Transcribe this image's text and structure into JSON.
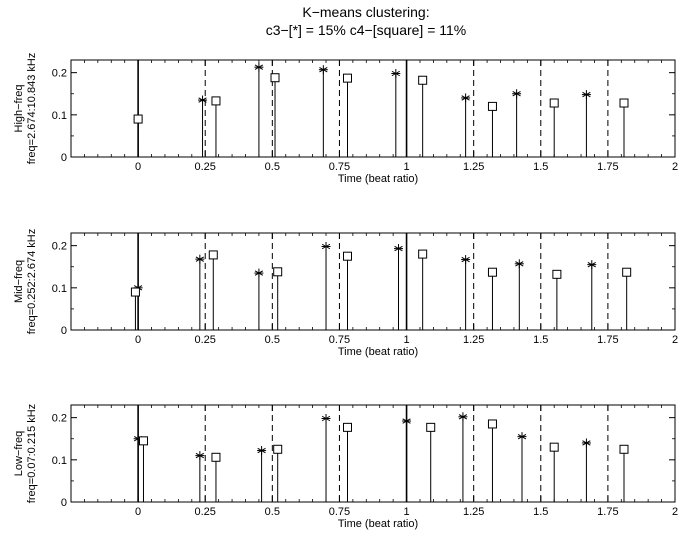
{
  "figure": {
    "title_line1": "K−means clustering:",
    "title_line2": "c3−[*] = 15%  c4−[square] = 11%"
  },
  "chart_data": [
    {
      "type": "stem",
      "ylabel_line1": "High−freq",
      "ylabel_line2": "freq=2.674:10.843 kHz",
      "xlabel": "Time (beat ratio)",
      "xlim": [
        -0.25,
        2
      ],
      "ylim": [
        0,
        0.23
      ],
      "xticks": [
        0,
        0.25,
        0.5,
        0.75,
        1,
        1.25,
        1.5,
        1.75,
        2
      ],
      "xtick_labels": [
        "0",
        "0.25",
        "0.5",
        "0.75",
        "1",
        "1.25",
        "1.5",
        "1.75",
        "2"
      ],
      "yticks": [
        0,
        0.1,
        0.2
      ],
      "ytick_labels": [
        "0",
        "0.1",
        "0.2"
      ],
      "solid_vlines": [
        0,
        1
      ],
      "dashed_vlines": [
        0.25,
        0.5,
        0.75,
        1.25,
        1.5,
        1.75
      ],
      "series": [
        {
          "marker": "star",
          "x": [
            0.0,
            0.24,
            0.45,
            0.69,
            0.96,
            1.22,
            1.41,
            1.67
          ],
          "y": [
            0.09,
            0.135,
            0.213,
            0.207,
            0.198,
            0.14,
            0.15,
            0.148
          ]
        },
        {
          "marker": "square",
          "x": [
            0.0,
            0.29,
            0.51,
            0.78,
            1.06,
            1.32,
            1.55,
            1.81
          ],
          "y": [
            0.09,
            0.133,
            0.188,
            0.187,
            0.182,
            0.12,
            0.128,
            0.128
          ]
        }
      ]
    },
    {
      "type": "stem",
      "ylabel_line1": "Mid−freq",
      "ylabel_line2": "freq=0.252:2.674 kHz",
      "xlabel": "Time (beat ratio)",
      "xlim": [
        -0.25,
        2
      ],
      "ylim": [
        0,
        0.23
      ],
      "xticks": [
        0,
        0.25,
        0.5,
        0.75,
        1,
        1.25,
        1.5,
        1.75,
        2
      ],
      "xtick_labels": [
        "0",
        "0.25",
        "0.5",
        "0.75",
        "1",
        "1.25",
        "1.5",
        "1.75",
        "2"
      ],
      "yticks": [
        0,
        0.1,
        0.2
      ],
      "ytick_labels": [
        "0",
        "0.1",
        "0.2"
      ],
      "solid_vlines": [
        0,
        1
      ],
      "dashed_vlines": [
        0.25,
        0.5,
        0.75,
        1.25,
        1.5,
        1.75
      ],
      "series": [
        {
          "marker": "star",
          "x": [
            0.0,
            0.23,
            0.45,
            0.7,
            0.97,
            1.22,
            1.42,
            1.69
          ],
          "y": [
            0.1,
            0.168,
            0.135,
            0.198,
            0.193,
            0.167,
            0.157,
            0.155
          ]
        },
        {
          "marker": "square",
          "x": [
            -0.01,
            0.28,
            0.52,
            0.78,
            1.06,
            1.32,
            1.56,
            1.82
          ],
          "y": [
            0.09,
            0.178,
            0.138,
            0.175,
            0.18,
            0.137,
            0.132,
            0.137
          ]
        }
      ]
    },
    {
      "type": "stem",
      "ylabel_line1": "Low−freq",
      "ylabel_line2": "freq=0.07:0.215 kHz",
      "xlabel": "Time (beat ratio)",
      "xlim": [
        -0.25,
        2
      ],
      "ylim": [
        0,
        0.23
      ],
      "xticks": [
        0,
        0.25,
        0.5,
        0.75,
        1,
        1.25,
        1.5,
        1.75,
        2
      ],
      "xtick_labels": [
        "0",
        "0.25",
        "0.5",
        "0.75",
        "1",
        "1.25",
        "1.5",
        "1.75",
        "2"
      ],
      "yticks": [
        0,
        0.1,
        0.2
      ],
      "ytick_labels": [
        "0",
        "0.1",
        "0.2"
      ],
      "solid_vlines": [
        0,
        1
      ],
      "dashed_vlines": [
        0.25,
        0.5,
        0.75,
        1.25,
        1.5,
        1.75
      ],
      "series": [
        {
          "marker": "star",
          "x": [
            0.0,
            0.23,
            0.46,
            0.7,
            1.0,
            1.21,
            1.43,
            1.67
          ],
          "y": [
            0.15,
            0.11,
            0.122,
            0.198,
            0.192,
            0.202,
            0.155,
            0.14
          ]
        },
        {
          "marker": "square",
          "x": [
            0.02,
            0.29,
            0.52,
            0.78,
            1.09,
            1.32,
            1.55,
            1.81
          ],
          "y": [
            0.145,
            0.106,
            0.125,
            0.177,
            0.177,
            0.185,
            0.13,
            0.125
          ]
        }
      ]
    }
  ]
}
